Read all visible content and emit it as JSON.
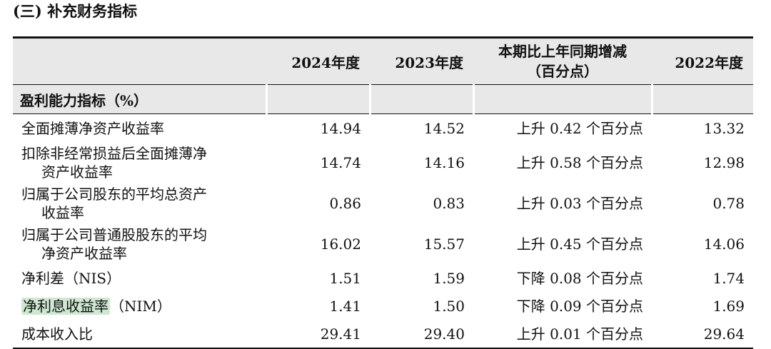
{
  "title": "(三) 补充财务指标",
  "headers": {
    "col1": "",
    "col2": "2024年度",
    "col3": "2023年度",
    "col4_line1": "本期比上年同期增减",
    "col4_line2": "（百分点）",
    "col5": "2022年度"
  },
  "group": "盈利能力指标（%）",
  "rows": [
    {
      "label1": "全面摊薄净资产收益率",
      "label2": "",
      "y2024": "14.94",
      "y2023": "14.52",
      "change": "上升 0.42 个百分点",
      "y2022": "13.32"
    },
    {
      "label1": "扣除非经常损益后全面摊薄净",
      "label2": "资产收益率",
      "y2024": "14.74",
      "y2023": "14.16",
      "change": "上升 0.58 个百分点",
      "y2022": "12.98"
    },
    {
      "label1": "归属于公司股东的平均总资产",
      "label2": "收益率",
      "y2024": "0.86",
      "y2023": "0.83",
      "change": "上升 0.03 个百分点",
      "y2022": "0.78"
    },
    {
      "label1": "归属于公司普通股股东的平均",
      "label2": "净资产收益率",
      "y2024": "16.02",
      "y2023": "15.57",
      "change": "上升 0.45 个百分点",
      "y2022": "14.06"
    },
    {
      "label1": "净利差（NIS）",
      "label2": "",
      "y2024": "1.51",
      "y2023": "1.59",
      "change": "下降 0.08 个百分点",
      "y2022": "1.74"
    },
    {
      "label_hl": "净利息收益率",
      "label_rest": "（NIM）",
      "y2024": "1.41",
      "y2023": "1.50",
      "change": "下降 0.09 个百分点",
      "y2022": "1.69"
    },
    {
      "label1": "成本收入比",
      "label2": "",
      "y2024": "29.41",
      "y2023": "29.40",
      "change": "上升 0.01 个百分点",
      "y2022": "29.64"
    }
  ]
}
